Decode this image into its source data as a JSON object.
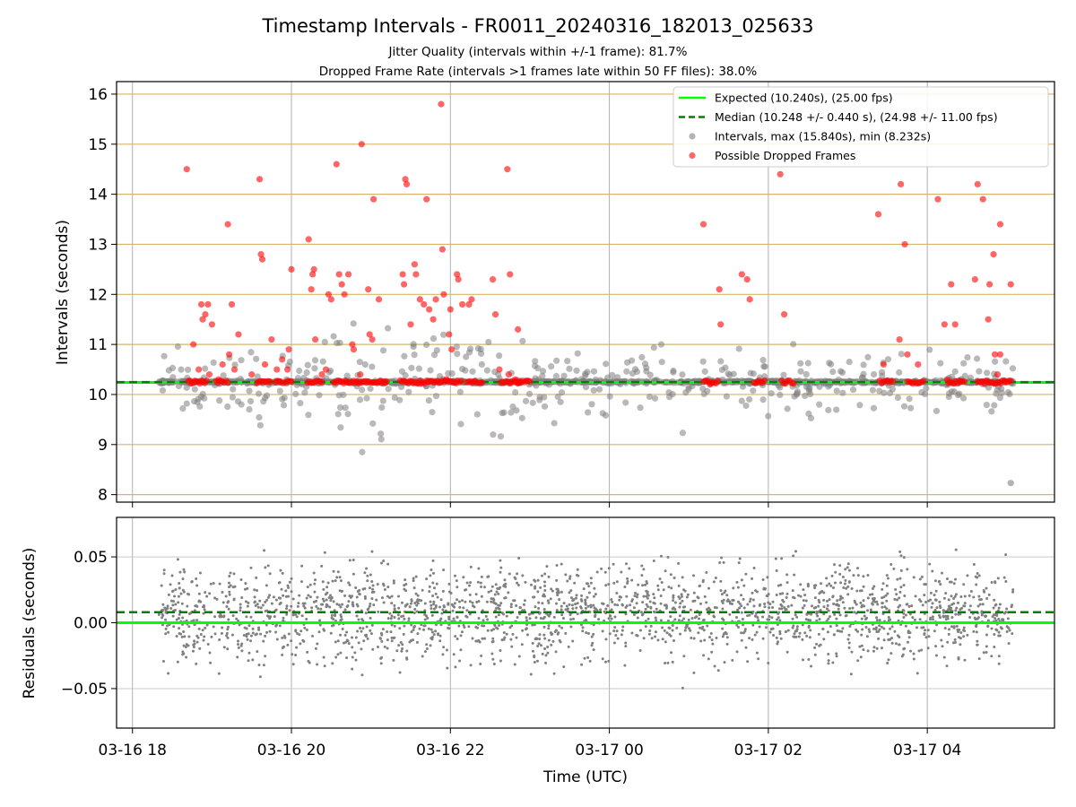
{
  "chart_data": [
    {
      "type": "scatter",
      "title": "Timestamp Intervals - FR0011_20240316_182013_025633",
      "subtitle_lines": [
        "Jitter Quality (intervals within +/-1 frame): 81.7%",
        "Dropped Frame Rate (intervals >1 frames late within 50 FF files): 38.0%"
      ],
      "ylabel": "Intervals (seconds)",
      "ylim": [
        7.85,
        16.25
      ],
      "yticks": [
        8,
        9,
        10,
        11,
        12,
        13,
        14,
        15,
        16
      ],
      "ytick_labels": [
        "8",
        "9",
        "10",
        "11",
        "12",
        "13",
        "14",
        "15",
        "16"
      ],
      "x_range_hours_from_0316_18": [
        -0.2,
        11.6
      ],
      "grid": true,
      "legend_position": "top-right",
      "legend": [
        {
          "label": "Expected (10.240s), (25.00 fps)",
          "style": "solid-line",
          "color": "#00ff00"
        },
        {
          "label": "Median (10.248 +/- 0.440 s), (24.98 +/- 11.00 fps)",
          "style": "dashed-line",
          "color": "#008000"
        },
        {
          "label": "Intervals, max (15.840s), min (8.232s)",
          "style": "marker",
          "color": "#808080"
        },
        {
          "label": "Possible Dropped Frames",
          "style": "marker",
          "color": "#ff0000"
        }
      ],
      "reference_lines": {
        "expected": 10.24,
        "median": 10.248
      },
      "stats": {
        "max": 15.84,
        "min": 8.232
      },
      "series": [
        {
          "name": "Possible Dropped Frames",
          "color": "#ff0000",
          "points": [
            [
              "03-16 18:41",
              14.5
            ],
            [
              "03-16 18:46",
              11.0
            ],
            [
              "03-16 18:50",
              10.5
            ],
            [
              "03-16 18:52",
              11.8
            ],
            [
              "03-16 18:53",
              11.5
            ],
            [
              "03-16 18:55",
              11.6
            ],
            [
              "03-16 18:57",
              11.8
            ],
            [
              "03-16 18:58",
              10.4
            ],
            [
              "03-16 19:00",
              11.4
            ],
            [
              "03-16 19:05",
              10.3
            ],
            [
              "03-16 19:08",
              10.6
            ],
            [
              "03-16 19:12",
              13.4
            ],
            [
              "03-16 19:13",
              10.8
            ],
            [
              "03-16 19:15",
              11.8
            ],
            [
              "03-16 19:17",
              10.5
            ],
            [
              "03-16 19:20",
              11.2
            ],
            [
              "03-16 19:30",
              10.4
            ],
            [
              "03-16 19:36",
              14.3
            ],
            [
              "03-16 19:37",
              12.8
            ],
            [
              "03-16 19:38",
              12.7
            ],
            [
              "03-16 19:40",
              10.6
            ],
            [
              "03-16 19:45",
              11.1
            ],
            [
              "03-16 19:49",
              10.5
            ],
            [
              "03-16 19:53",
              10.7
            ],
            [
              "03-16 19:57",
              10.5
            ],
            [
              "03-16 20:00",
              12.5
            ],
            [
              "03-16 19:58",
              10.9
            ],
            [
              "03-16 20:13",
              13.1
            ],
            [
              "03-16 20:15",
              12.1
            ],
            [
              "03-16 20:16",
              12.4
            ],
            [
              "03-16 20:17",
              12.5
            ],
            [
              "03-16 20:18",
              11.1
            ],
            [
              "03-16 20:23",
              10.4
            ],
            [
              "03-16 20:26",
              10.5
            ],
            [
              "03-16 20:28",
              12.0
            ],
            [
              "03-16 20:30",
              11.9
            ],
            [
              "03-16 20:34",
              14.6
            ],
            [
              "03-16 20:36",
              12.4
            ],
            [
              "03-16 20:38",
              12.2
            ],
            [
              "03-16 20:40",
              12.0
            ],
            [
              "03-16 20:43",
              12.4
            ],
            [
              "03-16 20:46",
              11.0
            ],
            [
              "03-16 20:47",
              10.9
            ],
            [
              "03-16 20:53",
              15.0
            ],
            [
              "03-16 20:52",
              10.4
            ],
            [
              "03-16 20:58",
              12.1
            ],
            [
              "03-16 20:59",
              11.2
            ],
            [
              "03-16 21:01",
              11.1
            ],
            [
              "03-16 21:02",
              13.9
            ],
            [
              "03-16 21:06",
              11.9
            ],
            [
              "03-16 21:24",
              12.4
            ],
            [
              "03-16 21:26",
              14.3
            ],
            [
              "03-16 21:27",
              14.2
            ],
            [
              "03-16 21:25",
              12.2
            ],
            [
              "03-16 21:30",
              11.4
            ],
            [
              "03-16 21:33",
              12.6
            ],
            [
              "03-16 21:34",
              12.4
            ],
            [
              "03-16 21:37",
              11.9
            ],
            [
              "03-16 21:40",
              11.8
            ],
            [
              "03-16 21:42",
              13.9
            ],
            [
              "03-16 21:44",
              11.7
            ],
            [
              "03-16 21:47",
              11.5
            ],
            [
              "03-16 21:49",
              11.9
            ],
            [
              "03-16 21:53",
              15.8
            ],
            [
              "03-16 21:54",
              12.9
            ],
            [
              "03-16 21:55",
              12.0
            ],
            [
              "03-16 21:57",
              10.3
            ],
            [
              "03-16 21:59",
              11.2
            ],
            [
              "03-16 22:00",
              11.7
            ],
            [
              "03-16 22:01",
              10.9
            ],
            [
              "03-16 22:05",
              12.4
            ],
            [
              "03-16 22:06",
              12.3
            ],
            [
              "03-16 22:09",
              11.8
            ],
            [
              "03-16 22:14",
              11.8
            ],
            [
              "03-16 22:16",
              11.9
            ],
            [
              "03-16 22:32",
              12.3
            ],
            [
              "03-16 22:34",
              11.6
            ],
            [
              "03-16 22:37",
              10.5
            ],
            [
              "03-16 22:43",
              14.5
            ],
            [
              "03-16 22:45",
              12.4
            ],
            [
              "03-16 22:44",
              10.4
            ],
            [
              "03-16 22:49",
              10.3
            ],
            [
              "03-16 22:51",
              11.3
            ],
            [
              "03-17 01:11",
              13.4
            ],
            [
              "03-17 01:16",
              10.2
            ],
            [
              "03-17 01:23",
              12.1
            ],
            [
              "03-17 01:24",
              11.4
            ],
            [
              "03-17 01:40",
              12.4
            ],
            [
              "03-17 01:44",
              12.3
            ],
            [
              "03-17 01:46",
              11.9
            ],
            [
              "03-17 02:09",
              14.4
            ],
            [
              "03-17 02:12",
              11.6
            ],
            [
              "03-17 03:23",
              13.6
            ],
            [
              "03-17 03:27",
              10.6
            ],
            [
              "03-17 03:40",
              14.2
            ],
            [
              "03-17 03:43",
              13.0
            ],
            [
              "03-17 03:39",
              11.1
            ],
            [
              "03-17 03:45",
              10.8
            ],
            [
              "03-17 03:53",
              10.6
            ],
            [
              "03-17 04:08",
              13.9
            ],
            [
              "03-17 04:13",
              11.4
            ],
            [
              "03-17 04:15",
              10.3
            ],
            [
              "03-17 04:18",
              12.2
            ],
            [
              "03-17 04:21",
              11.4
            ],
            [
              "03-17 04:38",
              14.2
            ],
            [
              "03-17 04:42",
              13.9
            ],
            [
              "03-17 04:36",
              12.3
            ],
            [
              "03-17 04:46",
              11.5
            ],
            [
              "03-17 04:47",
              12.2
            ],
            [
              "03-17 04:50",
              12.8
            ],
            [
              "03-17 04:51",
              10.8
            ],
            [
              "03-17 04:53",
              10.4
            ],
            [
              "03-17 04:55",
              13.4
            ],
            [
              "03-17 04:55",
              10.8
            ],
            [
              "03-17 05:03",
              12.2
            ]
          ],
          "clusters_at_value": 10.25,
          "cluster_ranges": [
            [
              "03-16 18:42",
              "03-16 18:56"
            ],
            [
              "03-16 19:03",
              "03-16 19:12"
            ],
            [
              "03-16 19:34",
              "03-16 19:44"
            ],
            [
              "03-16 19:48",
              "03-16 20:00"
            ],
            [
              "03-16 20:12",
              "03-16 20:23"
            ],
            [
              "03-16 20:32",
              "03-16 21:12"
            ],
            [
              "03-16 21:22",
              "03-16 22:08"
            ],
            [
              "03-16 22:12",
              "03-16 22:24"
            ],
            [
              "03-16 22:38",
              "03-16 22:52"
            ],
            [
              "03-16 22:52",
              "03-16 23:00"
            ],
            [
              "03-17 01:11",
              "03-17 01:22"
            ],
            [
              "03-17 01:49",
              "03-17 01:57"
            ],
            [
              "03-17 02:10",
              "03-17 02:19"
            ],
            [
              "03-17 03:24",
              "03-17 03:34"
            ],
            [
              "03-17 03:45",
              "03-17 03:57"
            ],
            [
              "03-17 04:16",
              "03-17 04:28"
            ],
            [
              "03-17 04:38",
              "03-17 05:03"
            ]
          ]
        },
        {
          "name": "Intervals, max (15.840s), min (8.232s)",
          "color": "#808080",
          "x_start": "03-16 18:20",
          "x_end": "03-17 05:05",
          "baseline": 10.25,
          "extreme_points": [
            [
              "03-17 05:03",
              8.232
            ]
          ]
        }
      ]
    },
    {
      "type": "scatter",
      "xlabel": "Time (UTC)",
      "ylabel": "Residuals (seconds)",
      "ylim": [
        -0.08,
        0.08
      ],
      "yticks": [
        -0.05,
        0.0,
        0.05
      ],
      "ytick_labels": [
        "−0.05",
        "0.00",
        "0.05"
      ],
      "xtick_labels": [
        "03-16 18",
        "03-16 20",
        "03-16 22",
        "03-17 00",
        "03-17 02",
        "03-17 04"
      ],
      "grid": true,
      "reference_lines": {
        "expected": 0.0,
        "median": 0.008
      },
      "series": [
        {
          "color": "#808080",
          "x_start": "03-16 18:20",
          "x_end": "03-17 05:05",
          "approx_mean": 0.008,
          "approx_spread": 0.03
        }
      ]
    }
  ]
}
